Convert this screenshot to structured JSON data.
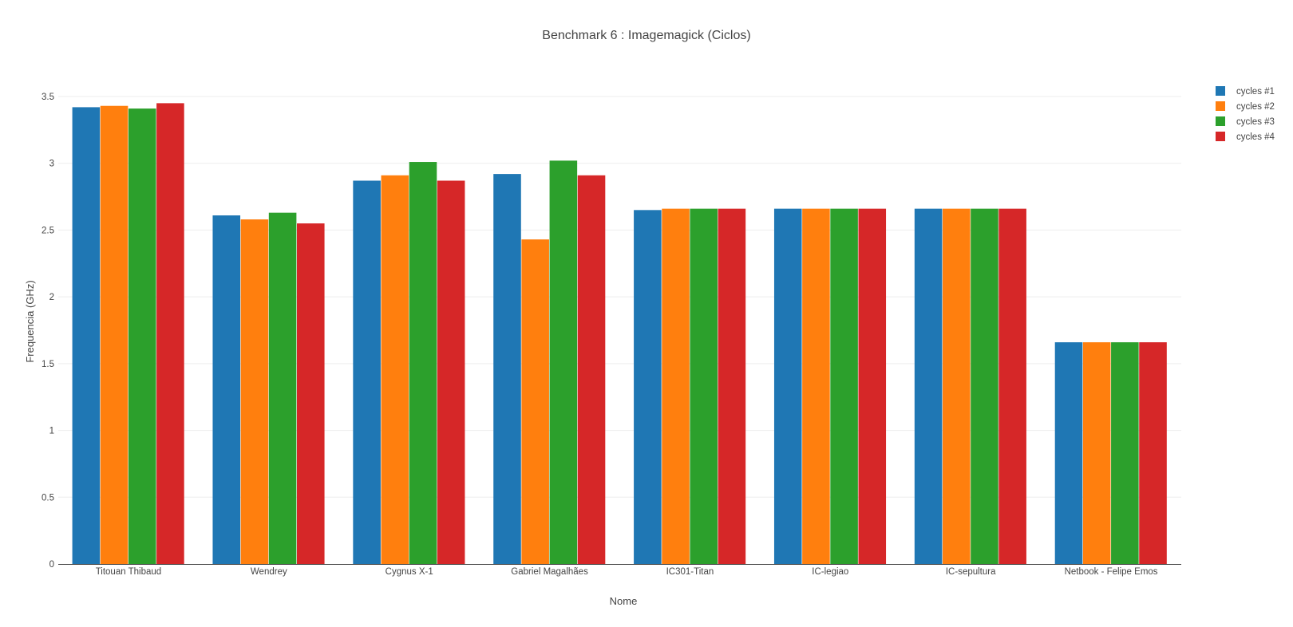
{
  "chart_data": {
    "type": "bar",
    "title": "Benchmark 6 : Imagemagick (Ciclos)",
    "xlabel": "Nome",
    "ylabel": "Frequencia (GHz)",
    "ylim": [
      0,
      3.5
    ],
    "yticks": [
      "0",
      "0.5",
      "1",
      "1.5",
      "2",
      "2.5",
      "3",
      "3.5"
    ],
    "grid": true,
    "legend_position": "top-right",
    "categories": [
      "Titouan Thibaud",
      "Wendrey",
      "Cygnus X-1",
      "Gabriel Magalhães",
      "IC301-Titan",
      "IC-legiao",
      "IC-sepultura",
      "Netbook - Felipe Emos"
    ],
    "series": [
      {
        "name": "cycles #1",
        "color": "#1f77b4",
        "values": [
          3.42,
          2.61,
          2.87,
          2.92,
          2.65,
          2.66,
          2.66,
          1.66
        ]
      },
      {
        "name": "cycles #2",
        "color": "#ff7f0e",
        "values": [
          3.43,
          2.58,
          2.91,
          2.43,
          2.66,
          2.66,
          2.66,
          1.66
        ]
      },
      {
        "name": "cycles #3",
        "color": "#2ca02c",
        "values": [
          3.41,
          2.63,
          3.01,
          3.02,
          2.66,
          2.66,
          2.66,
          1.66
        ]
      },
      {
        "name": "cycles #4",
        "color": "#d62728",
        "values": [
          3.45,
          2.55,
          2.87,
          2.91,
          2.66,
          2.66,
          2.66,
          1.66
        ]
      }
    ]
  }
}
